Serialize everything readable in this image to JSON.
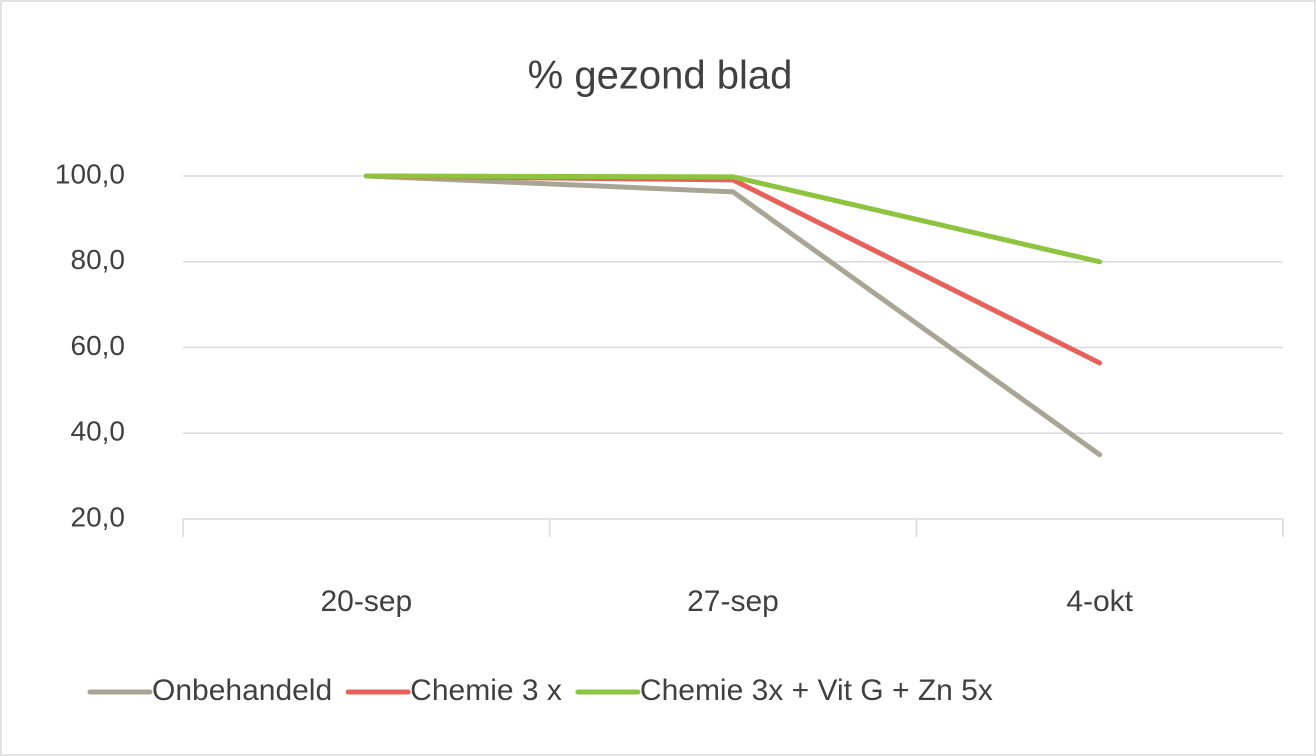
{
  "chart_data": {
    "type": "line",
    "title": "% gezond blad",
    "categories": [
      "20-sep",
      "27-sep",
      "4-okt"
    ],
    "series": [
      {
        "name": "Onbehandeld",
        "color": "#a8a595",
        "values": [
          100.0,
          96.3,
          35.0
        ]
      },
      {
        "name": "Chemie 3 x",
        "color": "#e8605a",
        "values": [
          100.0,
          99.1,
          56.4
        ]
      },
      {
        "name": "Chemie 3x + Vit G + Zn 5x",
        "color": "#8cc43f",
        "values": [
          100.0,
          99.8,
          80.0
        ]
      }
    ],
    "ylim": [
      20,
      100
    ],
    "yticks": [
      {
        "value": 20,
        "label": "20,0"
      },
      {
        "value": 40,
        "label": "40,0"
      },
      {
        "value": 60,
        "label": "60,0"
      },
      {
        "value": 80,
        "label": "80,0"
      },
      {
        "value": 100,
        "label": "100,0"
      }
    ],
    "grid": true,
    "legend": "bottom"
  }
}
